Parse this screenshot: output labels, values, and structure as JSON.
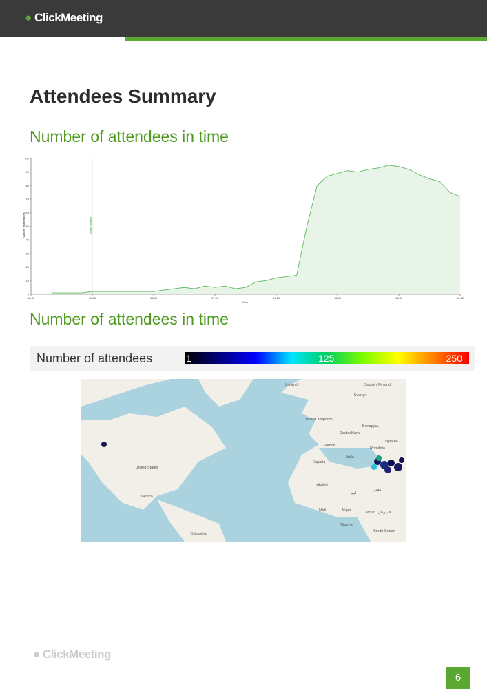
{
  "header": {
    "logo": "ClickMeeting"
  },
  "title": "Attendees Summary",
  "section1": "Number of attendees in time",
  "chart_data": {
    "type": "area",
    "color": "#5cb85c",
    "x_label": "Hour",
    "y_label": "Number of attendees",
    "annotation": {
      "x": "16:00",
      "text": "Event started"
    },
    "x": [
      "15:40",
      "15:45",
      "15:50",
      "15:55",
      "16:00",
      "16:05",
      "16:10",
      "16:15",
      "16:20",
      "16:25",
      "16:30",
      "16:35",
      "16:40",
      "16:45",
      "16:50",
      "16:55",
      "17:00",
      "17:05",
      "17:10",
      "17:15",
      "17:20",
      "17:25",
      "17:30",
      "17:35",
      "17:40",
      "17:45",
      "17:50",
      "17:55",
      "18:00",
      "18:05",
      "18:10",
      "18:15",
      "18:20",
      "18:25",
      "18:30",
      "18:35",
      "18:40",
      "18:45",
      "18:50",
      "18:55",
      "19:00"
    ],
    "values": [
      1,
      1,
      1,
      1,
      2,
      2,
      2,
      2,
      2,
      2,
      2,
      3,
      4,
      5,
      4,
      6,
      5,
      6,
      4,
      5,
      9,
      10,
      12,
      13,
      14,
      50,
      80,
      87,
      89,
      91,
      90,
      92,
      93,
      95,
      94,
      92,
      88,
      85,
      83,
      75,
      72
    ],
    "xlim": [
      "15:30",
      "19:00"
    ],
    "xticks": [
      "15:30",
      "16:00",
      "16:30",
      "17:00",
      "17:30",
      "18:00",
      "18:30",
      "19:00"
    ],
    "ylim": [
      0,
      100
    ],
    "yticks": [
      0,
      10,
      20,
      30,
      40,
      50,
      60,
      70,
      80,
      90,
      100
    ]
  },
  "section2": "Number of attendees in time",
  "colorbar": {
    "label": "Number of attendees",
    "ticks": [
      1,
      125,
      250
    ],
    "colors": [
      "#000000",
      "#000080",
      "#0000ff",
      "#00e5ff",
      "#00d060",
      "#7cfc00",
      "#ffff00",
      "#ff8000",
      "#ff0000"
    ]
  },
  "map": {
    "labels": [
      "Iceland",
      "Sverige",
      "Suomi / Finland",
      "United Kingdom",
      "Deutschland",
      "Беларусь",
      "Україна",
      "France",
      "România",
      "España",
      "Italia",
      "United States",
      "México",
      "Algérie",
      "Mali",
      "Niger",
      "Tchad",
      "Nigeria",
      "Colombia",
      "مصر",
      "ليبيا",
      "السودان",
      "South Sudan"
    ]
  },
  "footer": {
    "logo": "ClickMeeting",
    "page": "6"
  }
}
